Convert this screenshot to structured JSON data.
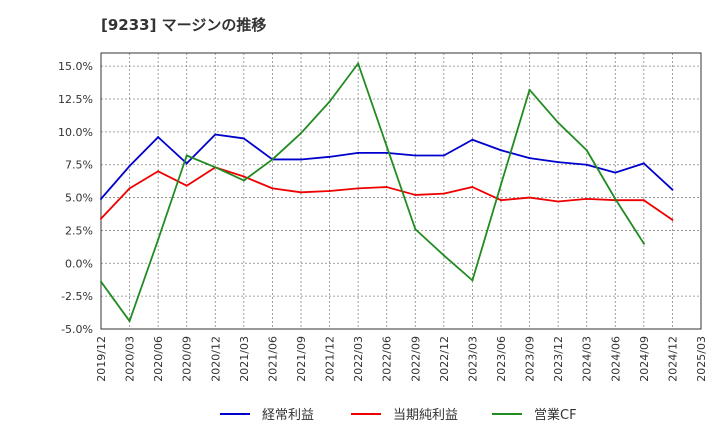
{
  "chart_data": {
    "type": "line",
    "title": "[9233]  マージンの推移",
    "xlabel": "",
    "ylabel": "",
    "ylim": [
      -5.0,
      16.0
    ],
    "y_ticks": [
      -5.0,
      -2.5,
      0.0,
      2.5,
      5.0,
      7.5,
      10.0,
      12.5,
      15.0
    ],
    "y_tick_labels": [
      "-5.0%",
      "-2.5%",
      "0.0%",
      "2.5%",
      "5.0%",
      "7.5%",
      "10.0%",
      "12.5%",
      "15.0%"
    ],
    "categories": [
      "2019/12",
      "2020/03",
      "2020/06",
      "2020/09",
      "2020/12",
      "2021/03",
      "2021/06",
      "2021/09",
      "2021/12",
      "2022/03",
      "2022/06",
      "2022/09",
      "2022/12",
      "2023/03",
      "2023/06",
      "2023/09",
      "2023/12",
      "2024/03",
      "2024/06",
      "2024/09",
      "2024/12",
      "2025/03"
    ],
    "grid": true,
    "legend_position": "bottom",
    "series": [
      {
        "name": "経常利益",
        "color": "#0000cc",
        "values": [
          4.9,
          7.4,
          9.6,
          7.6,
          9.8,
          9.5,
          7.9,
          7.9,
          8.1,
          8.4,
          8.4,
          8.2,
          8.2,
          9.4,
          8.6,
          8.0,
          7.7,
          7.5,
          6.9,
          7.6,
          5.6,
          null
        ]
      },
      {
        "name": "当期純利益",
        "color": "#ee0000",
        "values": [
          3.4,
          5.7,
          7.0,
          5.9,
          7.3,
          6.6,
          5.7,
          5.4,
          5.5,
          5.7,
          5.8,
          5.2,
          5.3,
          5.8,
          4.8,
          5.0,
          4.7,
          4.9,
          4.8,
          4.8,
          3.3,
          null
        ]
      },
      {
        "name": "営業CF",
        "color": "#228b22",
        "values": [
          -1.4,
          -4.4,
          1.8,
          8.2,
          7.3,
          6.3,
          7.9,
          9.9,
          12.3,
          15.2,
          8.9,
          2.6,
          0.6,
          -1.3,
          6.0,
          13.2,
          10.7,
          8.6,
          4.9,
          1.5,
          null,
          null
        ]
      }
    ]
  }
}
